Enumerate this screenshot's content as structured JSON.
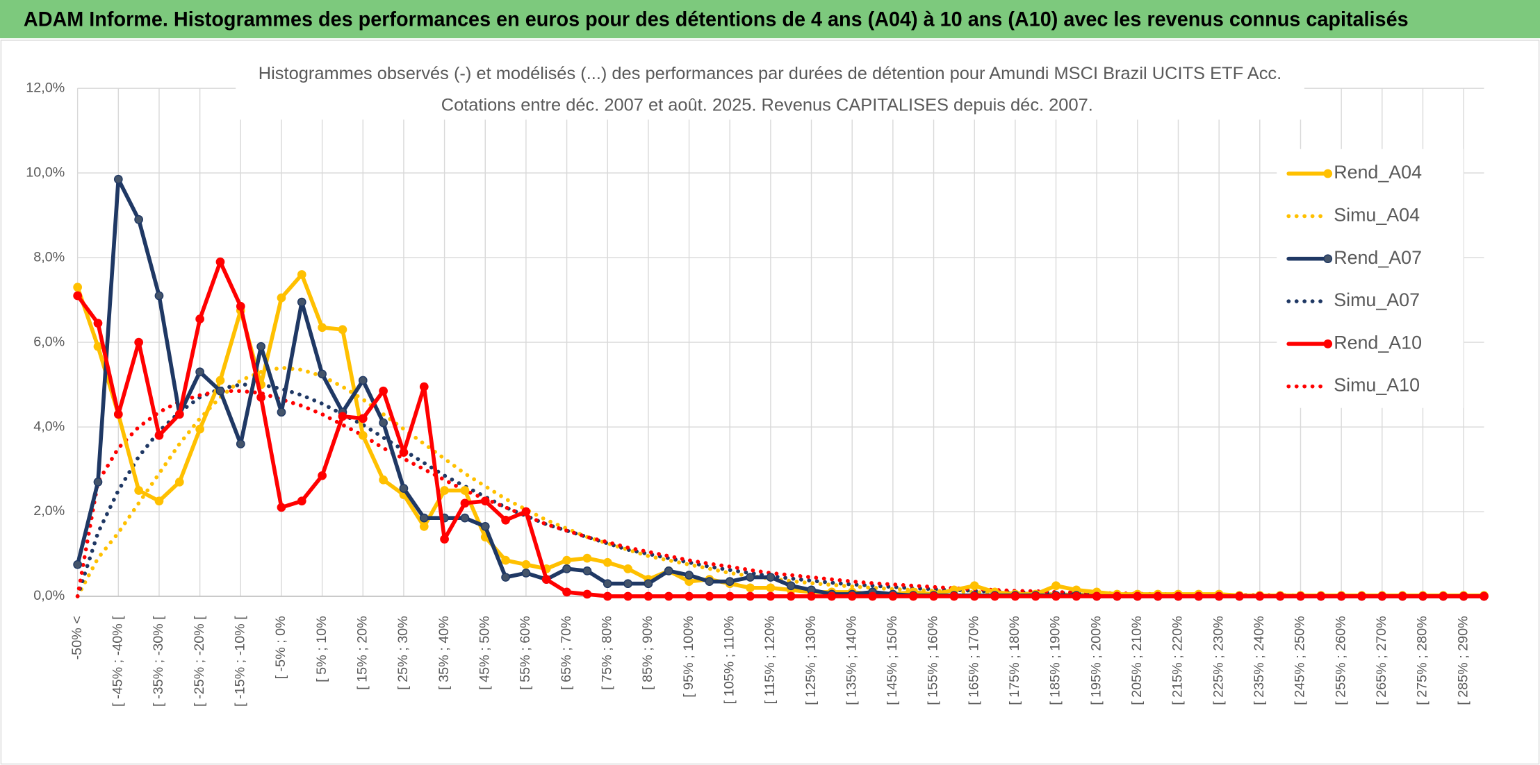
{
  "header": {
    "title": "ADAM Informe. Histogrammes des performances en euros pour des détentions de 4 ans (A04) à 10 ans (A10) avec les revenus connus capitalisés"
  },
  "chart_data": {
    "type": "line",
    "title": "Histogrammes observés (-) et modélisés (...) des performances par durées de détention pour Amundi MSCI Brazil UCITS ETF Acc.",
    "subtitle": "Cotations entre déc. 2007 et août. 2025. Revenus CAPITALISES depuis déc. 2007.",
    "categories": [
      "-50% <",
      null,
      "[ -45% ; -40% [",
      null,
      "[ -35% ; -30% [",
      null,
      "[ -25% ; -20% [",
      null,
      "[ -15% ; -10% [",
      null,
      "[ -5% ; 0%",
      null,
      "[ 5% ; 10%",
      null,
      "[ 15% ; 20%",
      null,
      "[ 25% ; 30%",
      null,
      "[ 35% ; 40%",
      null,
      "[ 45% ; 50%",
      null,
      "[ 55% ; 60%",
      null,
      "[ 65% ; 70%",
      null,
      "[ 75% ; 80%",
      null,
      "[ 85% ; 90%",
      null,
      "[ 95% ; 100%",
      null,
      "[ 105% ; 110%",
      null,
      "[ 115% ; 120%",
      null,
      "[ 125% ; 130%",
      null,
      "[ 135% ; 140%",
      null,
      "[ 145% ; 150%",
      null,
      "[ 155% ; 160%",
      null,
      "[ 165% ; 170%",
      null,
      "[ 175% ; 180%",
      null,
      "[ 185% ; 190%",
      null,
      "[ 195% ; 200%",
      null,
      "[ 205% ; 210%",
      null,
      "[ 215% ; 220%",
      null,
      "[ 225% ; 230%",
      null,
      "[ 235% ; 240%",
      null,
      "[ 245% ; 250%",
      null,
      "[ 255% ; 260%",
      null,
      "[ 265% ; 270%",
      null,
      "[ 275% ; 280%",
      null,
      "[ 285% ; 290%",
      null
    ],
    "ylim": [
      0,
      12
    ],
    "yticks": [
      {
        "value": 0,
        "label": "0,0%"
      },
      {
        "value": 2,
        "label": "2,0%"
      },
      {
        "value": 4,
        "label": "4,0%"
      },
      {
        "value": 6,
        "label": "6,0%"
      },
      {
        "value": 8,
        "label": "8,0%"
      },
      {
        "value": 10,
        "label": "10,0%"
      },
      {
        "value": 12,
        "label": "12,0%"
      }
    ],
    "grid": true,
    "legend": "right",
    "series": [
      {
        "name": "Rend_A04",
        "color": "#ffc000",
        "style": "solid",
        "values": [
          7.3,
          5.9,
          4.3,
          2.5,
          2.25,
          2.7,
          3.95,
          5.1,
          6.75,
          5.0,
          7.05,
          7.6,
          6.35,
          6.3,
          3.8,
          2.75,
          2.4,
          1.65,
          2.5,
          2.5,
          1.4,
          0.85,
          0.75,
          0.65,
          0.85,
          0.9,
          0.8,
          0.65,
          0.4,
          0.6,
          0.35,
          0.4,
          0.3,
          0.2,
          0.2,
          0.15,
          0.1,
          0.1,
          0.1,
          0.05,
          0.05,
          0.1,
          0.05,
          0.15,
          0.25,
          0.1,
          0.05,
          0.05,
          0.25,
          0.15,
          0.1,
          0.05,
          0.05,
          0.05,
          0.05,
          0.05,
          0.05,
          0.02,
          0.02,
          0.02,
          0.02,
          0.02,
          0.02,
          0.02,
          0.02,
          0.02,
          0.02,
          0.02,
          0.02,
          0.02
        ]
      },
      {
        "name": "Simu_A04",
        "color": "#ffc000",
        "style": "dotted",
        "values": [
          0,
          0.9,
          1.5,
          2.2,
          2.9,
          3.6,
          4.2,
          4.7,
          5.1,
          5.3,
          5.4,
          5.35,
          5.2,
          4.95,
          4.65,
          4.3,
          3.95,
          3.6,
          3.25,
          2.9,
          2.6,
          2.3,
          2.05,
          1.8,
          1.6,
          1.4,
          1.25,
          1.1,
          0.95,
          0.85,
          0.75,
          0.65,
          0.55,
          0.48,
          0.42,
          0.36,
          0.31,
          0.27,
          0.23,
          0.2,
          0.17,
          0.15,
          0.13,
          0.11,
          0.1,
          0.08,
          0.07,
          0.06,
          0.05,
          0.04,
          0.04,
          0.03,
          0.03,
          0.03,
          0.02,
          0.02,
          0.02,
          0.02,
          0.01,
          0.01,
          0.01,
          0.01,
          0.01,
          0.01,
          0.01,
          0.01,
          0.01,
          0.01,
          0.01,
          0.01
        ]
      },
      {
        "name": "Rend_A07",
        "color": "#1f3864",
        "style": "solid",
        "values": [
          0.75,
          2.7,
          9.85,
          8.9,
          7.1,
          4.3,
          5.3,
          4.85,
          3.6,
          5.9,
          4.35,
          6.95,
          5.25,
          4.35,
          5.1,
          4.1,
          2.55,
          1.85,
          1.85,
          1.85,
          1.65,
          0.45,
          0.55,
          0.4,
          0.65,
          0.6,
          0.3,
          0.3,
          0.3,
          0.6,
          0.5,
          0.35,
          0.35,
          0.45,
          0.45,
          0.25,
          0.15,
          0.05,
          0.05,
          0.1,
          0.05,
          0.02,
          0.02,
          0.02,
          0.02,
          0.02,
          0.02,
          0.02,
          0.02,
          0.02,
          0,
          0,
          0,
          0,
          0,
          0,
          0,
          0,
          0,
          0,
          0,
          0,
          0,
          0,
          0,
          0,
          0,
          0,
          0,
          0
        ]
      },
      {
        "name": "Simu_A07",
        "color": "#1f3864",
        "style": "dotted",
        "values": [
          0,
          1.5,
          2.5,
          3.3,
          3.9,
          4.35,
          4.7,
          4.9,
          5.0,
          5.0,
          4.9,
          4.75,
          4.55,
          4.3,
          4.05,
          3.75,
          3.45,
          3.15,
          2.85,
          2.6,
          2.35,
          2.1,
          1.9,
          1.7,
          1.55,
          1.4,
          1.25,
          1.1,
          1.0,
          0.9,
          0.8,
          0.7,
          0.62,
          0.55,
          0.48,
          0.42,
          0.37,
          0.32,
          0.28,
          0.25,
          0.22,
          0.19,
          0.17,
          0.15,
          0.13,
          0.11,
          0.1,
          0.09,
          0.08,
          0.07,
          0.06,
          0.05,
          0.05,
          0.04,
          0.04,
          0.03,
          0.03,
          0.03,
          0.02,
          0.02,
          0.02,
          0.02,
          0.02,
          0.01,
          0.01,
          0.01,
          0.01,
          0.01,
          0.01,
          0.01
        ]
      },
      {
        "name": "Rend_A10",
        "color": "#ff0000",
        "style": "solid",
        "values": [
          7.1,
          6.45,
          4.3,
          6.0,
          3.8,
          4.3,
          6.55,
          7.9,
          6.85,
          4.7,
          2.1,
          2.25,
          2.85,
          4.25,
          4.2,
          4.85,
          3.4,
          4.95,
          1.35,
          2.2,
          2.25,
          1.8,
          2.0,
          0.4,
          0.1,
          0.05,
          0,
          0,
          0,
          0,
          0,
          0,
          0,
          0,
          0,
          0,
          0,
          0,
          0,
          0,
          0,
          0,
          0,
          0,
          0,
          0,
          0,
          0,
          0,
          0,
          0,
          0,
          0,
          0,
          0,
          0,
          0,
          0,
          0,
          0,
          0,
          0,
          0,
          0,
          0,
          0,
          0,
          0,
          0,
          0
        ]
      },
      {
        "name": "Simu_A10",
        "color": "#ff0000",
        "style": "dotted",
        "values": [
          0,
          2.7,
          3.5,
          4.0,
          4.35,
          4.6,
          4.75,
          4.85,
          4.85,
          4.8,
          4.65,
          4.5,
          4.3,
          4.05,
          3.8,
          3.5,
          3.25,
          3.0,
          2.75,
          2.5,
          2.3,
          2.1,
          1.9,
          1.7,
          1.55,
          1.4,
          1.28,
          1.15,
          1.05,
          0.95,
          0.85,
          0.77,
          0.7,
          0.62,
          0.55,
          0.5,
          0.45,
          0.4,
          0.35,
          0.31,
          0.28,
          0.25,
          0.22,
          0.19,
          0.17,
          0.15,
          0.13,
          0.12,
          0.1,
          0.09,
          0.08,
          0.07,
          0.06,
          0.05,
          0.05,
          0.04,
          0.04,
          0.03,
          0.03,
          0.03,
          0.02,
          0.02,
          0.02,
          0.02,
          0.02,
          0.01,
          0.01,
          0.01,
          0.01,
          0.01
        ]
      }
    ]
  }
}
